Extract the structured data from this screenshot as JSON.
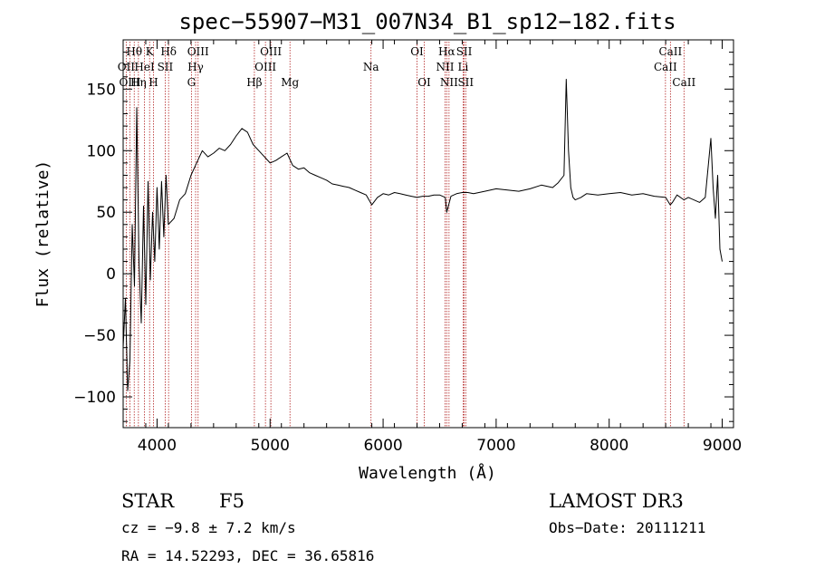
{
  "chart_data": {
    "type": "line",
    "title": "spec−55907−M31_007N34_B1_sp12−182.fits",
    "xlabel": "Wavelength (Å)",
    "ylabel": "Flux (relative)",
    "xlim": [
      3700,
      9100
    ],
    "ylim": [
      -125,
      190
    ],
    "x_ticks": [
      4000,
      5000,
      6000,
      7000,
      8000,
      9000
    ],
    "y_ticks": [
      -100,
      -50,
      0,
      50,
      100,
      150
    ],
    "line_color": "#000000",
    "marker_color": "#b22222",
    "series": [
      {
        "name": "spectrum",
        "x": [
          3700,
          3720,
          3740,
          3760,
          3780,
          3800,
          3820,
          3840,
          3860,
          3880,
          3900,
          3920,
          3940,
          3960,
          3980,
          4000,
          4020,
          4040,
          4060,
          4080,
          4100,
          4150,
          4200,
          4250,
          4300,
          4350,
          4400,
          4450,
          4500,
          4550,
          4600,
          4650,
          4700,
          4750,
          4800,
          4850,
          4900,
          4950,
          5000,
          5050,
          5100,
          5150,
          5200,
          5250,
          5300,
          5350,
          5400,
          5450,
          5500,
          5550,
          5600,
          5650,
          5700,
          5750,
          5800,
          5850,
          5900,
          5950,
          6000,
          6050,
          6100,
          6150,
          6200,
          6250,
          6300,
          6350,
          6400,
          6450,
          6500,
          6550,
          6563,
          6600,
          6650,
          6700,
          6750,
          6800,
          6900,
          7000,
          7100,
          7200,
          7300,
          7400,
          7500,
          7550,
          7600,
          7620,
          7640,
          7660,
          7680,
          7700,
          7750,
          7800,
          7900,
          8000,
          8100,
          8200,
          8300,
          8400,
          8500,
          8540,
          8560,
          8600,
          8662,
          8700,
          8800,
          8850,
          8900,
          8920,
          8940,
          8960,
          8980,
          9000
        ],
        "values": [
          -60,
          -20,
          -95,
          -70,
          40,
          -10,
          135,
          10,
          -40,
          55,
          -25,
          75,
          -5,
          50,
          10,
          70,
          20,
          75,
          30,
          80,
          40,
          45,
          60,
          65,
          80,
          90,
          100,
          95,
          98,
          102,
          100,
          105,
          112,
          118,
          115,
          105,
          100,
          95,
          90,
          92,
          95,
          98,
          88,
          85,
          86,
          82,
          80,
          78,
          76,
          73,
          72,
          71,
          70,
          68,
          66,
          64,
          56,
          62,
          65,
          64,
          66,
          65,
          64,
          63,
          62,
          63,
          63,
          64,
          64,
          62,
          50,
          63,
          65,
          66,
          66,
          65,
          67,
          69,
          68,
          67,
          69,
          72,
          70,
          74,
          80,
          158,
          100,
          70,
          62,
          60,
          62,
          65,
          64,
          65,
          66,
          64,
          65,
          63,
          62,
          56,
          58,
          64,
          60,
          62,
          58,
          62,
          110,
          70,
          45,
          80,
          20,
          10
        ]
      }
    ],
    "lines": [
      {
        "name": "Hθ",
        "x": 3798,
        "row": 0
      },
      {
        "name": "Hη",
        "x": 3835,
        "row": 2
      },
      {
        "name": "OII",
        "x": 3727,
        "row": 1
      },
      {
        "name": "OIII",
        "x": 3760,
        "row": 2
      },
      {
        "name": "HeI",
        "x": 3889,
        "row": 1
      },
      {
        "name": "K",
        "x": 3934,
        "row": 0
      },
      {
        "name": "H",
        "x": 3968,
        "row": 2
      },
      {
        "name": "SII",
        "x": 4072,
        "row": 1
      },
      {
        "name": "Hδ",
        "x": 4102,
        "row": 0
      },
      {
        "name": "G",
        "x": 4304,
        "row": 2
      },
      {
        "name": "Hγ",
        "x": 4341,
        "row": 1
      },
      {
        "name": "OIII",
        "x": 4363,
        "row": 0
      },
      {
        "name": "Hβ",
        "x": 4861,
        "row": 2
      },
      {
        "name": "OIII",
        "x": 4959,
        "row": 1
      },
      {
        "name": "OIII",
        "x": 5007,
        "row": 0
      },
      {
        "name": "Mg",
        "x": 5176,
        "row": 2
      },
      {
        "name": "Na",
        "x": 5893,
        "row": 1
      },
      {
        "name": "OI",
        "x": 6300,
        "row": 0
      },
      {
        "name": "OI",
        "x": 6364,
        "row": 2
      },
      {
        "name": "NII",
        "x": 6548,
        "row": 1
      },
      {
        "name": "Hα",
        "x": 6563,
        "row": 0
      },
      {
        "name": "NII",
        "x": 6583,
        "row": 2
      },
      {
        "name": "Li",
        "x": 6708,
        "row": 1
      },
      {
        "name": "SII",
        "x": 6717,
        "row": 0
      },
      {
        "name": "SII",
        "x": 6731,
        "row": 2
      },
      {
        "name": "CaII",
        "x": 8498,
        "row": 1
      },
      {
        "name": "CaII",
        "x": 8542,
        "row": 0
      },
      {
        "name": "CaII",
        "x": 8662,
        "row": 2
      }
    ]
  },
  "info": {
    "object_class": "STAR",
    "subclass": "F5",
    "redshift": "cz = −9.8 ± 7.2 km/s",
    "coords": "RA =  14.52293, DEC =  36.65816",
    "survey": "LAMOST DR3",
    "obs_date": "Obs−Date: 20111211"
  }
}
